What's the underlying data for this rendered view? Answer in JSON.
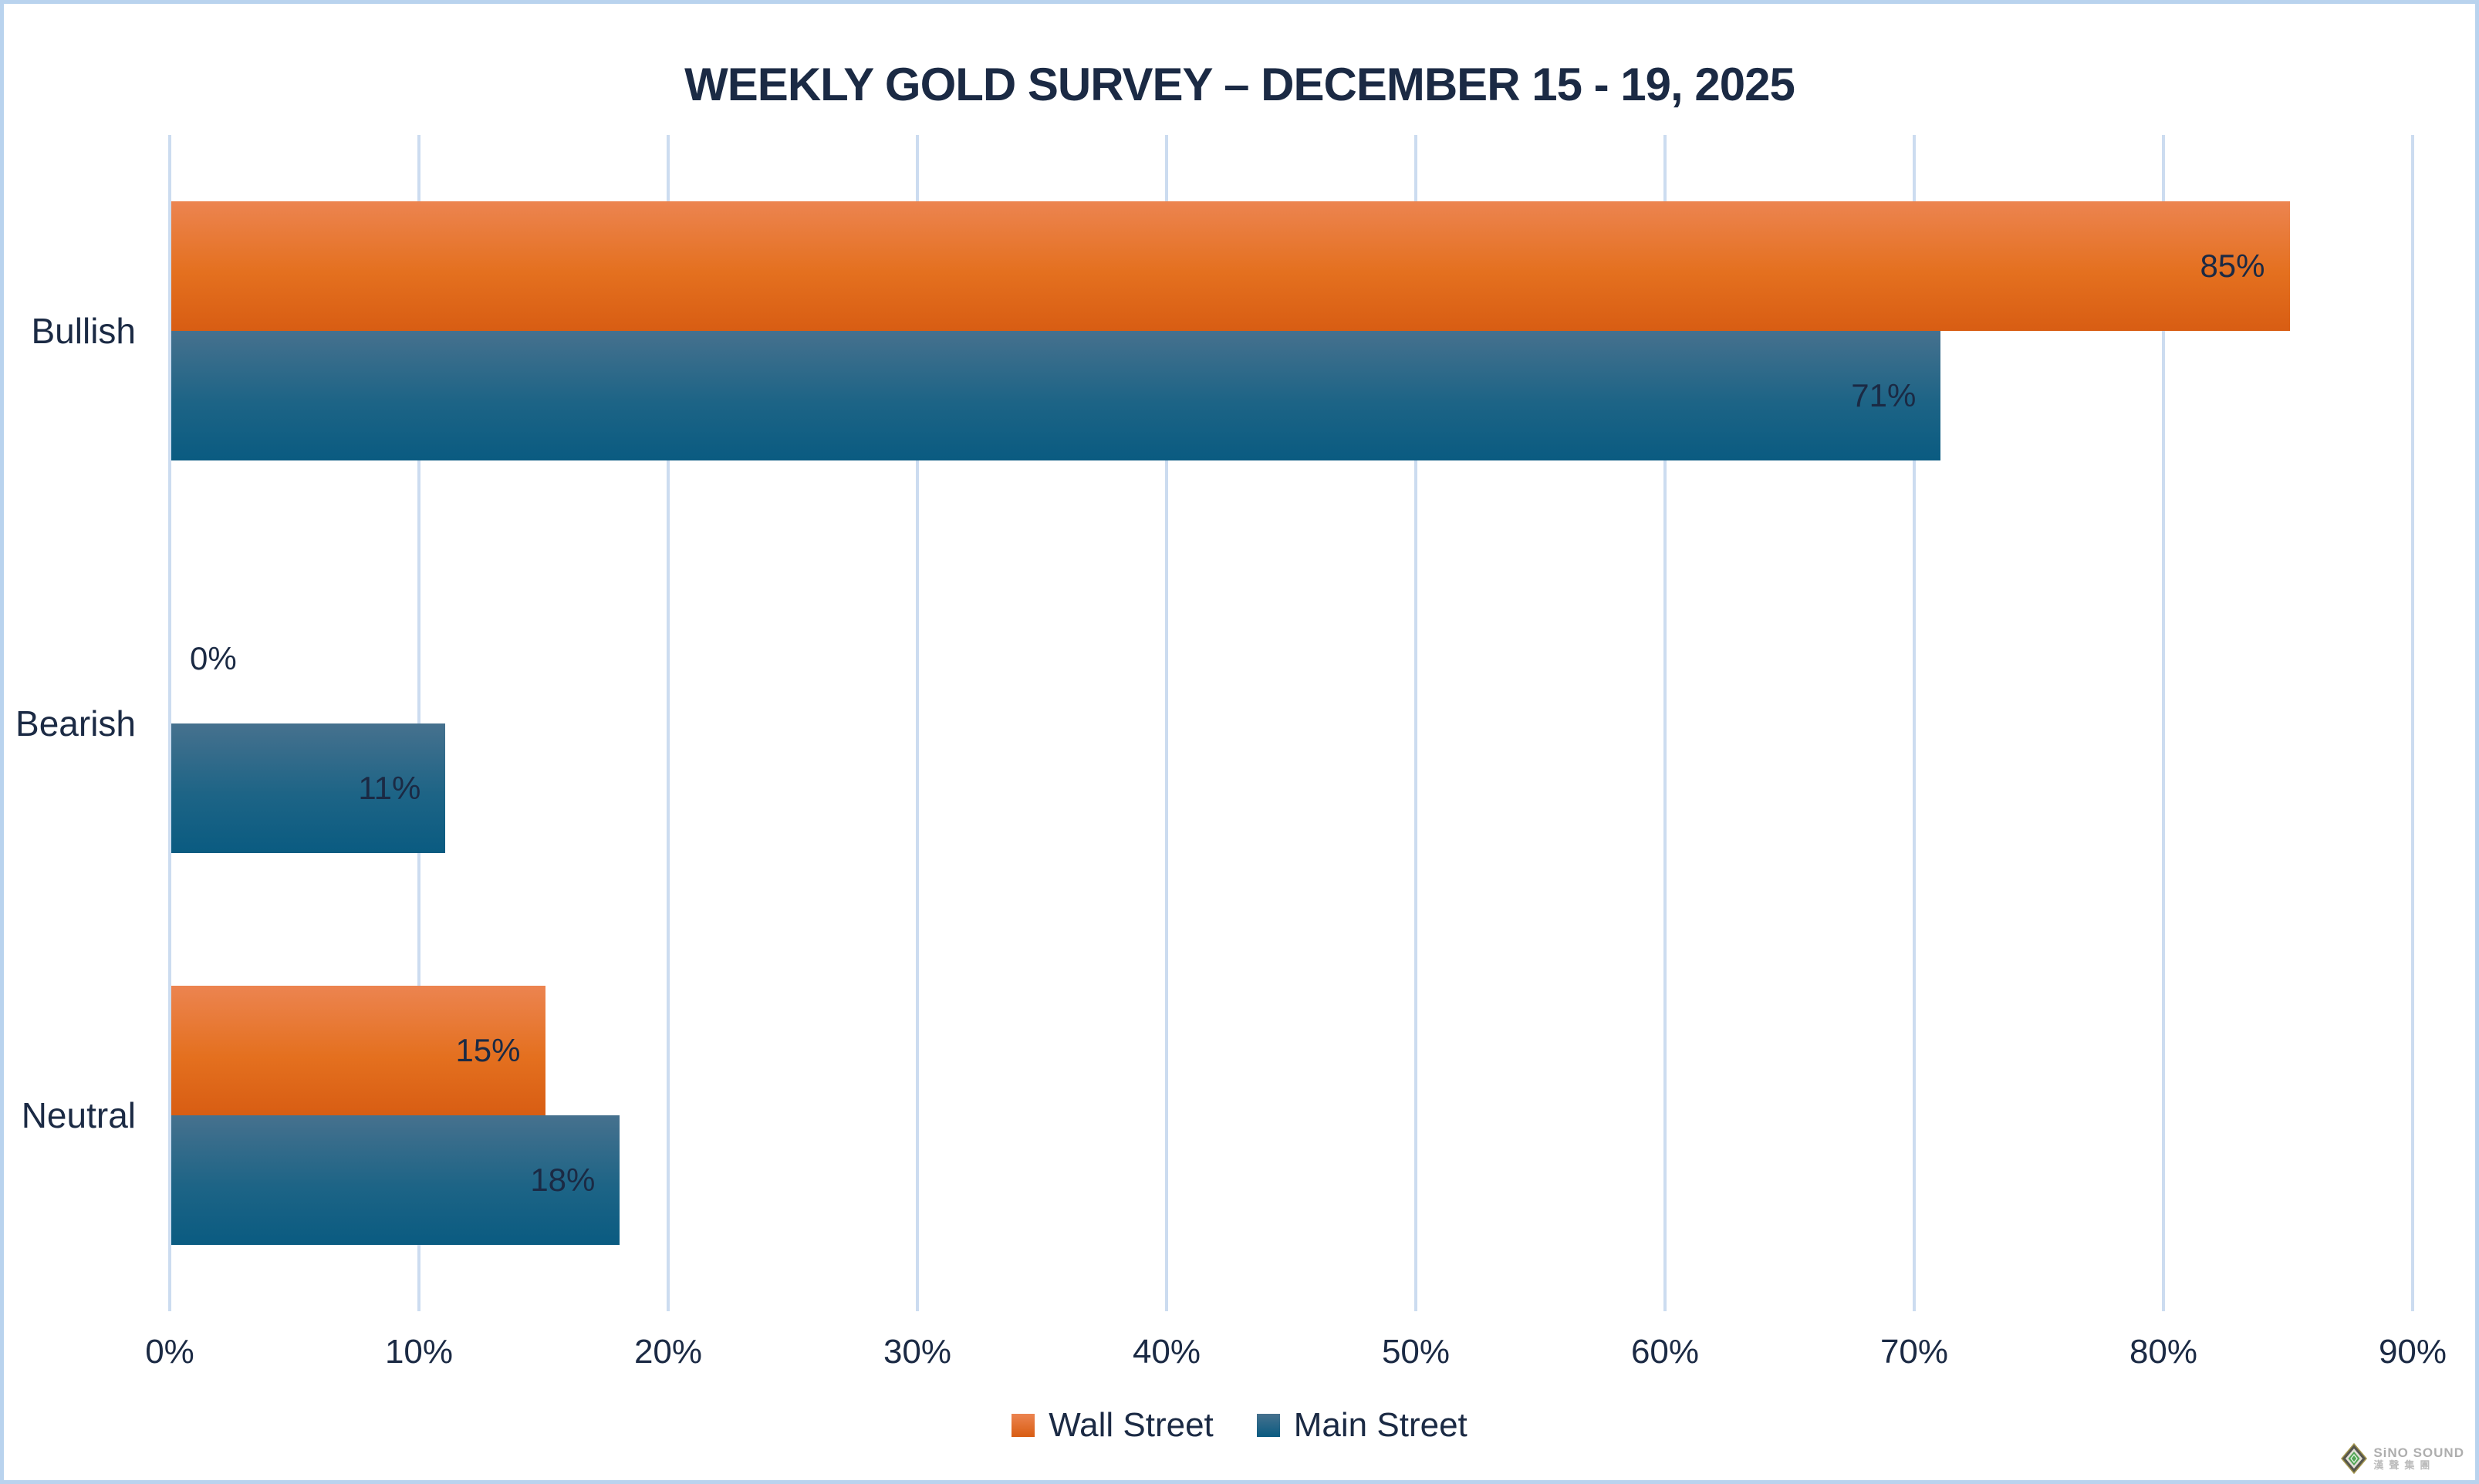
{
  "chart_data": {
    "type": "bar",
    "orientation": "horizontal",
    "title": "WEEKLY GOLD SURVEY – DECEMBER 15 - 19, 2025",
    "categories": [
      "Bullish",
      "Bearish",
      "Neutral"
    ],
    "series": [
      {
        "name": "Wall Street",
        "values": [
          85,
          0,
          15
        ],
        "labels": [
          "85%",
          "0%",
          "15%"
        ]
      },
      {
        "name": "Main Street",
        "values": [
          71,
          11,
          18
        ],
        "labels": [
          "71%",
          "11%",
          "18%"
        ]
      }
    ],
    "value_axis": {
      "min": 0,
      "max": 90,
      "step": 10,
      "ticks": [
        "0%",
        "10%",
        "20%",
        "30%",
        "40%",
        "50%",
        "60%",
        "70%",
        "80%",
        "90%"
      ]
    },
    "grid": true,
    "legend_position": "bottom"
  },
  "colors": {
    "wall_street_top": "#EC8450",
    "wall_street_bottom": "#D85D13",
    "main_street_top": "#46718E",
    "main_street_bottom": "#0A5B81",
    "text_navy": "#1b2a44",
    "gridline": "#ccdcf0",
    "frame_border": "#b9d3ee"
  },
  "watermark": {
    "line1": "SiNO SOUND",
    "line2": "漢聲集團"
  }
}
